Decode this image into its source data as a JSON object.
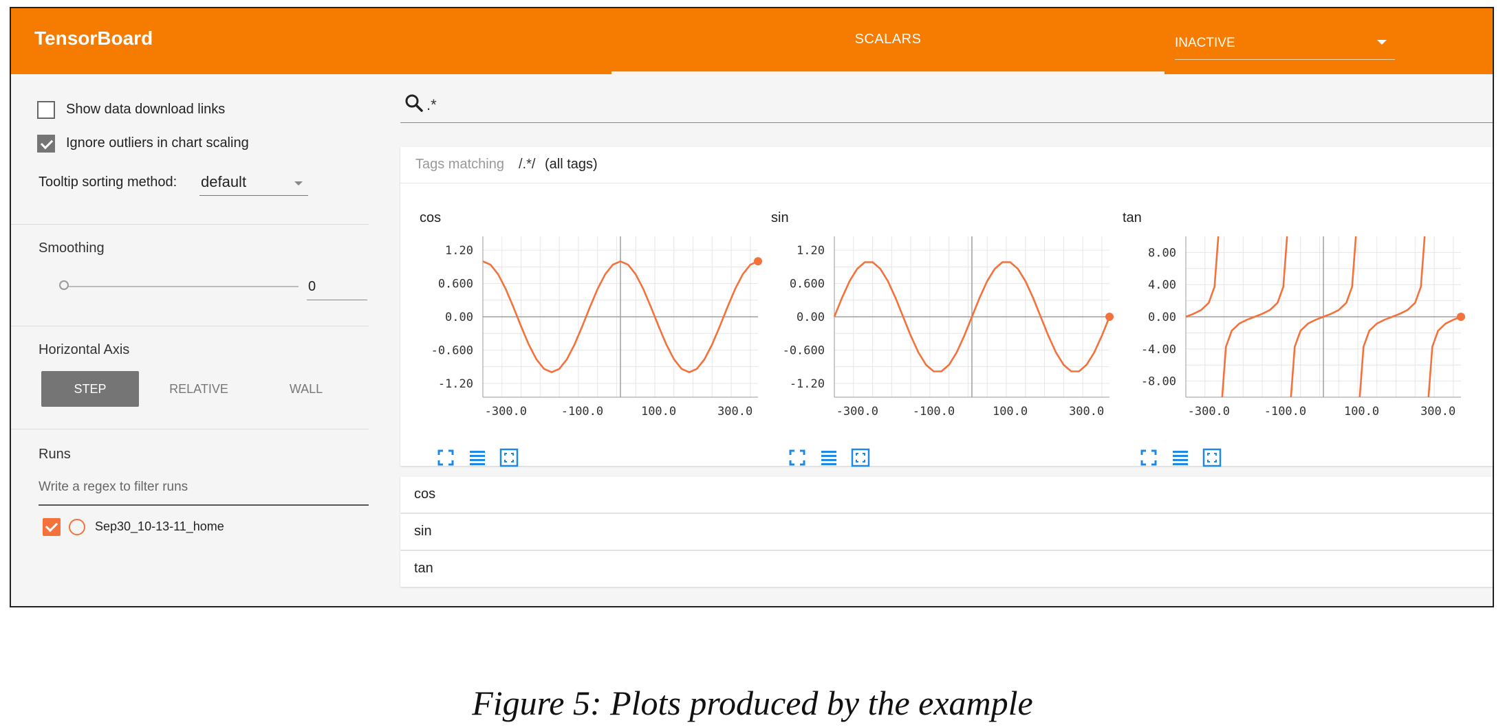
{
  "header": {
    "brand": "TensorBoard",
    "tab_scalars": "SCALARS",
    "run_selector": "INACTIVE",
    "accent_color": "#f57c00"
  },
  "sidebar": {
    "show_download_links": {
      "label": "Show data download links",
      "checked": false
    },
    "ignore_outliers": {
      "label": "Ignore outliers in chart scaling",
      "checked": true
    },
    "tooltip_sorting": {
      "label": "Tooltip sorting method:",
      "value": "default"
    },
    "smoothing": {
      "title": "Smoothing",
      "value": "0",
      "slider_fraction": 0
    },
    "horizontal_axis": {
      "title": "Horizontal Axis",
      "options": [
        "STEP",
        "RELATIVE",
        "WALL"
      ],
      "selected": "STEP"
    },
    "runs": {
      "title": "Runs",
      "filter_placeholder": "Write a regex to filter runs",
      "items": [
        {
          "name": "Sep30_10-13-11_home",
          "checked": true,
          "color": "#f4713c"
        }
      ]
    }
  },
  "main": {
    "search_value": ".*",
    "tags_header": {
      "prefix": "Tags matching",
      "pattern": "/.*/",
      "suffix": "(all tags)"
    },
    "collapsed_rows": [
      "cos",
      "sin",
      "tan"
    ],
    "icons": [
      "fit-domain-icon",
      "toggle-log-scale-icon",
      "expand-chart-icon"
    ]
  },
  "chart_data": [
    {
      "type": "line",
      "title": "cos",
      "series_color": "#f4713c",
      "xlim": [
        -360,
        360
      ],
      "ylim": [
        -1.45,
        1.45
      ],
      "xticks": [
        -300,
        -100,
        100,
        300
      ],
      "xtick_labels": [
        "-300.0",
        "-100.0",
        "100.0",
        "300.0"
      ],
      "yticks": [
        1.2,
        0.6,
        0,
        -0.6,
        -1.2
      ],
      "ytick_labels": [
        "1.20",
        "0.600",
        "0.00",
        "-0.600",
        "-1.20"
      ],
      "x": [
        -360,
        -340,
        -320,
        -300,
        -280,
        -260,
        -240,
        -220,
        -200,
        -180,
        -160,
        -140,
        -120,
        -100,
        -80,
        -60,
        -40,
        -20,
        0,
        20,
        40,
        60,
        80,
        100,
        120,
        140,
        160,
        180,
        200,
        220,
        240,
        260,
        280,
        300,
        320,
        340,
        360
      ],
      "y": [
        1.0,
        0.94,
        0.766,
        0.5,
        0.174,
        -0.174,
        -0.5,
        -0.766,
        -0.94,
        -1.0,
        -0.94,
        -0.766,
        -0.5,
        -0.174,
        0.174,
        0.5,
        0.766,
        0.94,
        1.0,
        0.94,
        0.766,
        0.5,
        0.174,
        -0.174,
        -0.5,
        -0.766,
        -0.94,
        -1.0,
        -0.94,
        -0.766,
        -0.5,
        -0.174,
        0.174,
        0.5,
        0.766,
        0.94,
        1.0
      ],
      "grid": true
    },
    {
      "type": "line",
      "title": "sin",
      "series_color": "#f4713c",
      "xlim": [
        -360,
        360
      ],
      "ylim": [
        -1.45,
        1.45
      ],
      "xticks": [
        -300,
        -100,
        100,
        300
      ],
      "xtick_labels": [
        "-300.0",
        "-100.0",
        "100.0",
        "300.0"
      ],
      "yticks": [
        1.2,
        0.6,
        0,
        -0.6,
        -1.2
      ],
      "ytick_labels": [
        "1.20",
        "0.600",
        "0.00",
        "-0.600",
        "-1.20"
      ],
      "x": [
        -360,
        -340,
        -320,
        -300,
        -280,
        -260,
        -240,
        -220,
        -200,
        -180,
        -160,
        -140,
        -120,
        -100,
        -80,
        -60,
        -40,
        -20,
        0,
        20,
        40,
        60,
        80,
        100,
        120,
        140,
        160,
        180,
        200,
        220,
        240,
        260,
        280,
        300,
        320,
        340,
        360
      ],
      "y": [
        0,
        0.342,
        0.643,
        0.866,
        0.985,
        0.985,
        0.866,
        0.643,
        0.342,
        0,
        -0.342,
        -0.643,
        -0.866,
        -0.985,
        -0.985,
        -0.866,
        -0.643,
        -0.342,
        0,
        0.342,
        0.643,
        0.866,
        0.985,
        0.985,
        0.866,
        0.643,
        0.342,
        0,
        -0.342,
        -0.643,
        -0.866,
        -0.985,
        -0.985,
        -0.866,
        -0.643,
        -0.342,
        0
      ],
      "grid": true
    },
    {
      "type": "line",
      "title": "tan",
      "series_color": "#f4713c",
      "xlim": [
        -360,
        360
      ],
      "ylim": [
        -10,
        10
      ],
      "xticks": [
        -300,
        -100,
        100,
        300
      ],
      "xtick_labels": [
        "-300.0",
        "-100.0",
        "100.0",
        "300.0"
      ],
      "yticks": [
        8,
        4,
        0,
        -4,
        -8
      ],
      "ytick_labels": [
        "8.00",
        "4.00",
        "0.00",
        "-4.00",
        "-8.00"
      ],
      "x": [
        -360,
        -340,
        -320,
        -300,
        -285,
        -275,
        -270,
        -265,
        -255,
        -240,
        -220,
        -200,
        -180,
        -160,
        -140,
        -120,
        -105,
        -95,
        -90,
        -85,
        -75,
        -60,
        -40,
        -20,
        0,
        20,
        40,
        60,
        75,
        85,
        90,
        95,
        105,
        120,
        140,
        160,
        180,
        200,
        220,
        240,
        255,
        265,
        270,
        275,
        285,
        300,
        320,
        340,
        360
      ],
      "y": [
        0,
        0.364,
        0.839,
        1.732,
        3.732,
        11.43,
        null,
        -11.43,
        -3.732,
        -1.732,
        -0.839,
        -0.364,
        0,
        0.364,
        0.839,
        1.732,
        3.732,
        11.43,
        null,
        -11.43,
        -3.732,
        -1.732,
        -0.839,
        -0.364,
        0,
        0.364,
        0.839,
        1.732,
        3.732,
        11.43,
        null,
        -11.43,
        -3.732,
        -1.732,
        -0.839,
        -0.364,
        0,
        0.364,
        0.839,
        1.732,
        3.732,
        11.43,
        null,
        -11.43,
        -3.732,
        -1.732,
        -0.839,
        -0.364,
        0
      ],
      "grid": true
    }
  ],
  "caption": "Figure 5: Plots produced by the example"
}
